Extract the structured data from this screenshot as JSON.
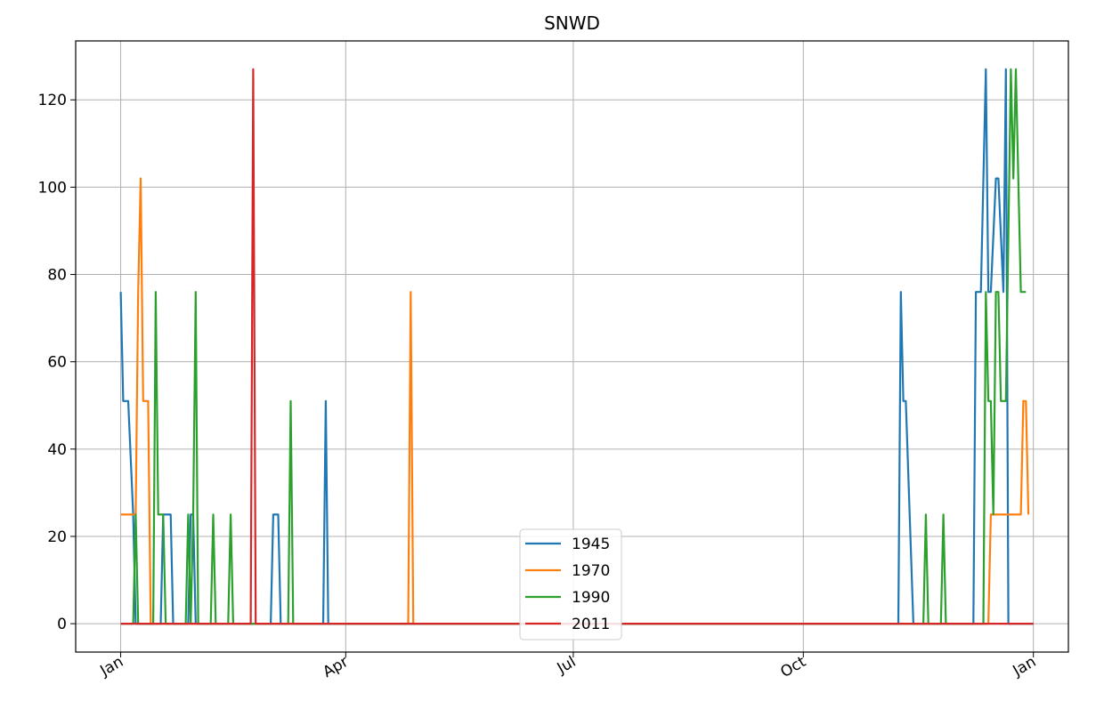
{
  "chart_data": {
    "type": "line",
    "title": "SNWD",
    "xlabel": "",
    "ylabel": "",
    "x_ticks": [
      {
        "day": 0,
        "label": "Jan"
      },
      {
        "day": 90,
        "label": "Apr"
      },
      {
        "day": 181,
        "label": "Jul"
      },
      {
        "day": 273,
        "label": "Oct"
      },
      {
        "day": 365,
        "label": "Jan"
      }
    ],
    "y_ticks": [
      0,
      20,
      40,
      60,
      80,
      100,
      120
    ],
    "xlim": [
      -18,
      379
    ],
    "ylim": [
      -6.5,
      133.5
    ],
    "grid": true,
    "legend_position": "bottom-center",
    "series": [
      {
        "name": "1945",
        "color": "#1f77b4",
        "points": [
          [
            0,
            76
          ],
          [
            1,
            51
          ],
          [
            3,
            51
          ],
          [
            5,
            25
          ],
          [
            6,
            0
          ],
          [
            16,
            0
          ],
          [
            17,
            25
          ],
          [
            20,
            25
          ],
          [
            21,
            0
          ],
          [
            27,
            0
          ],
          [
            28,
            25
          ],
          [
            29,
            25
          ],
          [
            30,
            0
          ],
          [
            60,
            0
          ],
          [
            61,
            25
          ],
          [
            63,
            25
          ],
          [
            64,
            0
          ],
          [
            81,
            0
          ],
          [
            82,
            51
          ],
          [
            83,
            0
          ],
          [
            311,
            0
          ],
          [
            312,
            76
          ],
          [
            313,
            51
          ],
          [
            314,
            51
          ],
          [
            317,
            0
          ],
          [
            341,
            0
          ],
          [
            342,
            76
          ],
          [
            344,
            76
          ],
          [
            346,
            127
          ],
          [
            347,
            76
          ],
          [
            348,
            76
          ],
          [
            350,
            102
          ],
          [
            351,
            102
          ],
          [
            353,
            76
          ],
          [
            354,
            127
          ],
          [
            355,
            0
          ],
          [
            365,
            0
          ]
        ]
      },
      {
        "name": "1970",
        "color": "#ff7f0e",
        "points": [
          [
            0,
            25
          ],
          [
            6,
            25
          ],
          [
            7,
            76
          ],
          [
            8,
            102
          ],
          [
            9,
            51
          ],
          [
            11,
            51
          ],
          [
            12,
            0
          ],
          [
            115,
            0
          ],
          [
            116,
            76
          ],
          [
            117,
            0
          ],
          [
            347,
            0
          ],
          [
            348,
            25
          ],
          [
            360,
            25
          ],
          [
            361,
            51
          ],
          [
            362,
            51
          ],
          [
            363,
            25
          ]
        ]
      },
      {
        "name": "1990",
        "color": "#2ca02c",
        "points": [
          [
            0,
            0
          ],
          [
            5,
            0
          ],
          [
            6,
            25
          ],
          [
            7,
            0
          ],
          [
            13,
            0
          ],
          [
            14,
            76
          ],
          [
            15,
            25
          ],
          [
            17,
            25
          ],
          [
            18,
            0
          ],
          [
            26,
            0
          ],
          [
            27,
            25
          ],
          [
            28,
            0
          ],
          [
            29,
            25
          ],
          [
            30,
            76
          ],
          [
            31,
            0
          ],
          [
            36,
            0
          ],
          [
            37,
            25
          ],
          [
            38,
            0
          ],
          [
            43,
            0
          ],
          [
            44,
            25
          ],
          [
            45,
            0
          ],
          [
            67,
            0
          ],
          [
            68,
            51
          ],
          [
            69,
            0
          ],
          [
            321,
            0
          ],
          [
            322,
            25
          ],
          [
            323,
            0
          ],
          [
            328,
            0
          ],
          [
            329,
            25
          ],
          [
            330,
            0
          ],
          [
            345,
            0
          ],
          [
            346,
            76
          ],
          [
            347,
            51
          ],
          [
            348,
            51
          ],
          [
            349,
            25
          ],
          [
            350,
            76
          ],
          [
            351,
            76
          ],
          [
            352,
            51
          ],
          [
            354,
            51
          ],
          [
            356,
            127
          ],
          [
            357,
            102
          ],
          [
            358,
            127
          ],
          [
            360,
            76
          ],
          [
            362,
            76
          ]
        ]
      },
      {
        "name": "2011",
        "color": "#d62728",
        "points": [
          [
            0,
            0
          ],
          [
            52,
            0
          ],
          [
            53,
            127
          ],
          [
            54,
            0
          ],
          [
            365,
            0
          ]
        ]
      }
    ]
  }
}
